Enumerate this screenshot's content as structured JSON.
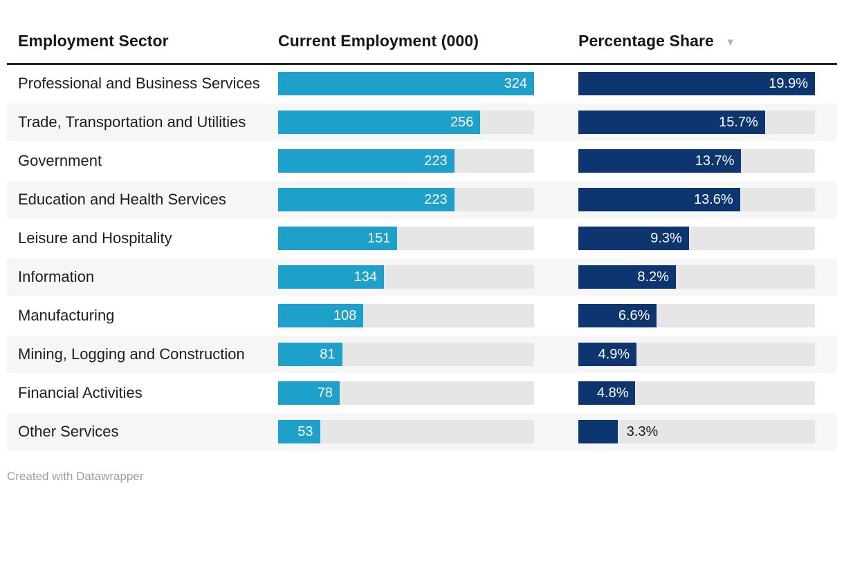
{
  "table": {
    "columns": [
      {
        "key": "sector",
        "label": "Employment Sector"
      },
      {
        "key": "employment",
        "label": "Current Employment (000)"
      },
      {
        "key": "share",
        "label": "Percentage Share",
        "sort_indicator": "▼",
        "sorted": "descending"
      }
    ],
    "rows": [
      {
        "sector": "Professional and Business Services",
        "employment": 324,
        "employment_label": "324",
        "share": 19.9,
        "share_label": "19.9%",
        "share_label_inside": true
      },
      {
        "sector": "Trade, Transportation and Utilities",
        "employment": 256,
        "employment_label": "256",
        "share": 15.7,
        "share_label": "15.7%",
        "share_label_inside": true
      },
      {
        "sector": "Government",
        "employment": 223,
        "employment_label": "223",
        "share": 13.7,
        "share_label": "13.7%",
        "share_label_inside": true
      },
      {
        "sector": "Education and Health Services",
        "employment": 223,
        "employment_label": "223",
        "share": 13.6,
        "share_label": "13.6%",
        "share_label_inside": true
      },
      {
        "sector": "Leisure and Hospitality",
        "employment": 151,
        "employment_label": "151",
        "share": 9.3,
        "share_label": "9.3%",
        "share_label_inside": true
      },
      {
        "sector": "Information",
        "employment": 134,
        "employment_label": "134",
        "share": 8.2,
        "share_label": "8.2%",
        "share_label_inside": true
      },
      {
        "sector": "Manufacturing",
        "employment": 108,
        "employment_label": "108",
        "share": 6.6,
        "share_label": "6.6%",
        "share_label_inside": true
      },
      {
        "sector": "Mining, Logging and Construction",
        "employment": 81,
        "employment_label": "81",
        "share": 4.9,
        "share_label": "4.9%",
        "share_label_inside": true
      },
      {
        "sector": "Financial Activities",
        "employment": 78,
        "employment_label": "78",
        "share": 4.8,
        "share_label": "4.8%",
        "share_label_inside": true
      },
      {
        "sector": "Other Services",
        "employment": 53,
        "employment_label": "53",
        "share": 3.3,
        "share_label": "3.3%",
        "share_label_inside": false
      }
    ],
    "scale": {
      "employment_max": 324,
      "share_max": 19.9
    }
  },
  "colors": {
    "employment_bar": "#1da0c9",
    "share_bar": "#0d356f",
    "bar_track": "#e6e6e6",
    "alt_row_bg": "#f6f6f6",
    "header_rule": "#222222",
    "sort_arrow": "#b5b5b5",
    "credit_text": "#9d9d9d"
  },
  "footer": {
    "credit": "Created with Datawrapper"
  },
  "chart_data": {
    "type": "table",
    "title": "",
    "categories": [
      "Professional and Business Services",
      "Trade, Transportation and Utilities",
      "Government",
      "Education and Health Services",
      "Leisure and Hospitality",
      "Information",
      "Manufacturing",
      "Mining, Logging and Construction",
      "Financial Activities",
      "Other Services"
    ],
    "series": [
      {
        "name": "Current Employment (000)",
        "type": "bar",
        "values": [
          324,
          256,
          223,
          223,
          151,
          134,
          108,
          81,
          78,
          53
        ],
        "bar_scale_max": 324
      },
      {
        "name": "Percentage Share",
        "type": "bar",
        "unit": "%",
        "values": [
          19.9,
          15.7,
          13.7,
          13.6,
          9.3,
          8.2,
          6.6,
          4.9,
          4.8,
          3.3
        ],
        "bar_scale_max": 19.9
      }
    ],
    "sort": {
      "column": "Percentage Share",
      "direction": "descending"
    },
    "legend": "none",
    "grid": "off"
  }
}
